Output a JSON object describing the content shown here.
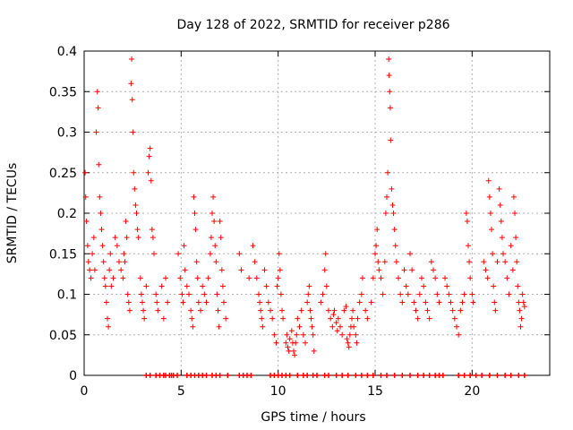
{
  "chart_data": {
    "type": "scatter",
    "title": "Day 128 of 2022, SRMTID for receiver p286",
    "xlabel": "GPS time / hours",
    "ylabel": "SRMTID / TECUs",
    "xlim": [
      0,
      24
    ],
    "ylim": [
      0,
      0.4
    ],
    "x_ticks": [
      0,
      5,
      10,
      15,
      20
    ],
    "x_tick_labels": [
      "0",
      "5",
      "10",
      "15",
      "20"
    ],
    "y_ticks": [
      0,
      0.05,
      0.1,
      0.15,
      0.2,
      0.25,
      0.3,
      0.35,
      0.4
    ],
    "y_tick_labels": [
      "0",
      "0.05",
      "0.1",
      "0.15",
      "0.2",
      "0.25",
      "0.3",
      "0.35",
      "0.4"
    ],
    "grid": true,
    "marker": "+",
    "series": [
      {
        "name": "SRMTID",
        "color": "#ff0000",
        "points": [
          [
            0.05,
            0.25
          ],
          [
            0.08,
            0.22
          ],
          [
            0.12,
            0.19
          ],
          [
            0.18,
            0.16
          ],
          [
            0.22,
            0.14
          ],
          [
            0.28,
            0.13
          ],
          [
            0.35,
            0.12
          ],
          [
            0.42,
            0.15
          ],
          [
            0.5,
            0.17
          ],
          [
            0.55,
            0.13
          ],
          [
            0.62,
            0.3
          ],
          [
            0.68,
            0.35
          ],
          [
            0.72,
            0.33
          ],
          [
            0.75,
            0.26
          ],
          [
            0.8,
            0.22
          ],
          [
            0.85,
            0.2
          ],
          [
            0.9,
            0.18
          ],
          [
            0.95,
            0.16
          ],
          [
            1.0,
            0.14
          ],
          [
            1.05,
            0.12
          ],
          [
            1.1,
            0.11
          ],
          [
            1.15,
            0.09
          ],
          [
            1.2,
            0.07
          ],
          [
            1.25,
            0.06
          ],
          [
            1.3,
            0.13
          ],
          [
            1.35,
            0.15
          ],
          [
            1.4,
            0.11
          ],
          [
            1.5,
            0.12
          ],
          [
            1.6,
            0.17
          ],
          [
            1.7,
            0.16
          ],
          [
            1.8,
            0.14
          ],
          [
            1.9,
            0.13
          ],
          [
            2.0,
            0.12
          ],
          [
            2.05,
            0.15
          ],
          [
            2.1,
            0.14
          ],
          [
            2.15,
            0.19
          ],
          [
            2.2,
            0.17
          ],
          [
            2.25,
            0.1
          ],
          [
            2.3,
            0.09
          ],
          [
            2.35,
            0.08
          ],
          [
            2.42,
            0.36
          ],
          [
            2.45,
            0.39
          ],
          [
            2.48,
            0.34
          ],
          [
            2.52,
            0.3
          ],
          [
            2.55,
            0.25
          ],
          [
            2.6,
            0.23
          ],
          [
            2.65,
            0.21
          ],
          [
            2.7,
            0.2
          ],
          [
            2.75,
            0.18
          ],
          [
            2.8,
            0.17
          ],
          [
            2.9,
            0.12
          ],
          [
            2.95,
            0.1
          ],
          [
            3.0,
            0.09
          ],
          [
            3.05,
            0.08
          ],
          [
            3.1,
            0.07
          ],
          [
            3.2,
            0.11
          ],
          [
            3.3,
            0.25
          ],
          [
            3.35,
            0.27
          ],
          [
            3.4,
            0.28
          ],
          [
            3.45,
            0.24
          ],
          [
            3.5,
            0.18
          ],
          [
            3.55,
            0.17
          ],
          [
            3.6,
            0.15
          ],
          [
            3.7,
            0.1
          ],
          [
            3.75,
            0.09
          ],
          [
            3.8,
            0.08
          ],
          [
            4.0,
            0.11
          ],
          [
            4.1,
            0.07
          ],
          [
            4.2,
            0.12
          ],
          [
            4.3,
            0.09
          ],
          [
            4.85,
            0.15
          ],
          [
            4.95,
            0.12
          ],
          [
            5.05,
            0.1
          ],
          [
            5.1,
            0.09
          ],
          [
            5.15,
            0.16
          ],
          [
            5.2,
            0.13
          ],
          [
            5.3,
            0.11
          ],
          [
            5.4,
            0.1
          ],
          [
            5.5,
            0.08
          ],
          [
            5.55,
            0.07
          ],
          [
            5.6,
            0.06
          ],
          [
            5.65,
            0.22
          ],
          [
            5.7,
            0.2
          ],
          [
            5.75,
            0.18
          ],
          [
            5.8,
            0.14
          ],
          [
            5.85,
            0.12
          ],
          [
            5.9,
            0.09
          ],
          [
            6.0,
            0.08
          ],
          [
            6.1,
            0.11
          ],
          [
            6.2,
            0.1
          ],
          [
            6.3,
            0.09
          ],
          [
            6.4,
            0.12
          ],
          [
            6.5,
            0.15
          ],
          [
            6.55,
            0.17
          ],
          [
            6.6,
            0.2
          ],
          [
            6.65,
            0.22
          ],
          [
            6.7,
            0.19
          ],
          [
            6.75,
            0.16
          ],
          [
            6.8,
            0.14
          ],
          [
            6.85,
            0.1
          ],
          [
            6.9,
            0.08
          ],
          [
            6.95,
            0.06
          ],
          [
            7.0,
            0.19
          ],
          [
            7.05,
            0.17
          ],
          [
            7.1,
            0.13
          ],
          [
            7.15,
            0.11
          ],
          [
            7.2,
            0.09
          ],
          [
            7.3,
            0.07
          ],
          [
            8.0,
            0.15
          ],
          [
            8.1,
            0.13
          ],
          [
            8.5,
            0.12
          ],
          [
            8.7,
            0.16
          ],
          [
            8.8,
            0.14
          ],
          [
            8.9,
            0.12
          ],
          [
            9.0,
            0.1
          ],
          [
            9.05,
            0.09
          ],
          [
            9.1,
            0.08
          ],
          [
            9.15,
            0.07
          ],
          [
            9.2,
            0.06
          ],
          [
            9.3,
            0.13
          ],
          [
            9.4,
            0.11
          ],
          [
            9.5,
            0.09
          ],
          [
            9.6,
            0.08
          ],
          [
            9.7,
            0.07
          ],
          [
            9.8,
            0.05
          ],
          [
            9.9,
            0.04
          ],
          [
            9.95,
            0.11
          ],
          [
            10.0,
            0.12
          ],
          [
            10.05,
            0.15
          ],
          [
            10.1,
            0.13
          ],
          [
            10.15,
            0.1
          ],
          [
            10.2,
            0.08
          ],
          [
            10.25,
            0.07
          ],
          [
            10.4,
            0.04
          ],
          [
            10.45,
            0.05
          ],
          [
            10.5,
            0.035
          ],
          [
            10.55,
            0.03
          ],
          [
            10.6,
            0.045
          ],
          [
            10.7,
            0.055
          ],
          [
            10.75,
            0.04
          ],
          [
            10.8,
            0.03
          ],
          [
            10.85,
            0.025
          ],
          [
            10.9,
            0.04
          ],
          [
            10.95,
            0.05
          ],
          [
            11.0,
            0.07
          ],
          [
            11.1,
            0.06
          ],
          [
            11.2,
            0.08
          ],
          [
            11.3,
            0.05
          ],
          [
            11.4,
            0.04
          ],
          [
            11.5,
            0.09
          ],
          [
            11.55,
            0.1
          ],
          [
            11.6,
            0.11
          ],
          [
            11.65,
            0.08
          ],
          [
            11.7,
            0.07
          ],
          [
            11.75,
            0.06
          ],
          [
            11.8,
            0.05
          ],
          [
            11.85,
            0.03
          ],
          [
            12.2,
            0.09
          ],
          [
            12.3,
            0.1
          ],
          [
            12.4,
            0.13
          ],
          [
            12.45,
            0.15
          ],
          [
            12.5,
            0.11
          ],
          [
            12.6,
            0.08
          ],
          [
            12.7,
            0.07
          ],
          [
            12.8,
            0.06
          ],
          [
            12.85,
            0.075
          ],
          [
            12.9,
            0.08
          ],
          [
            13.0,
            0.065
          ],
          [
            13.05,
            0.055
          ],
          [
            13.1,
            0.07
          ],
          [
            13.2,
            0.06
          ],
          [
            13.3,
            0.05
          ],
          [
            13.4,
            0.08
          ],
          [
            13.5,
            0.085
          ],
          [
            13.55,
            0.045
          ],
          [
            13.6,
            0.04
          ],
          [
            13.65,
            0.035
          ],
          [
            13.7,
            0.05
          ],
          [
            13.75,
            0.06
          ],
          [
            13.8,
            0.07
          ],
          [
            13.85,
            0.08
          ],
          [
            13.9,
            0.06
          ],
          [
            14.0,
            0.05
          ],
          [
            14.05,
            0.04
          ],
          [
            14.1,
            0.07
          ],
          [
            14.2,
            0.09
          ],
          [
            14.3,
            0.1
          ],
          [
            14.35,
            0.12
          ],
          [
            14.5,
            0.08
          ],
          [
            14.6,
            0.07
          ],
          [
            14.8,
            0.09
          ],
          [
            14.9,
            0.12
          ],
          [
            15.0,
            0.15
          ],
          [
            15.05,
            0.16
          ],
          [
            15.1,
            0.18
          ],
          [
            15.15,
            0.14
          ],
          [
            15.2,
            0.13
          ],
          [
            15.3,
            0.12
          ],
          [
            15.4,
            0.1
          ],
          [
            15.5,
            0.14
          ],
          [
            15.55,
            0.2
          ],
          [
            15.6,
            0.22
          ],
          [
            15.65,
            0.25
          ],
          [
            15.7,
            0.39
          ],
          [
            15.72,
            0.37
          ],
          [
            15.75,
            0.35
          ],
          [
            15.78,
            0.33
          ],
          [
            15.8,
            0.29
          ],
          [
            15.85,
            0.23
          ],
          [
            15.9,
            0.21
          ],
          [
            15.95,
            0.2
          ],
          [
            16.0,
            0.18
          ],
          [
            16.05,
            0.16
          ],
          [
            16.1,
            0.14
          ],
          [
            16.2,
            0.12
          ],
          [
            16.3,
            0.1
          ],
          [
            16.4,
            0.09
          ],
          [
            16.5,
            0.13
          ],
          [
            16.6,
            0.11
          ],
          [
            16.7,
            0.1
          ],
          [
            16.8,
            0.15
          ],
          [
            16.9,
            0.13
          ],
          [
            17.0,
            0.09
          ],
          [
            17.1,
            0.08
          ],
          [
            17.2,
            0.07
          ],
          [
            17.3,
            0.1
          ],
          [
            17.4,
            0.12
          ],
          [
            17.5,
            0.11
          ],
          [
            17.6,
            0.09
          ],
          [
            17.7,
            0.08
          ],
          [
            17.8,
            0.07
          ],
          [
            17.9,
            0.14
          ],
          [
            18.0,
            0.13
          ],
          [
            18.1,
            0.12
          ],
          [
            18.2,
            0.1
          ],
          [
            18.3,
            0.09
          ],
          [
            18.6,
            0.12
          ],
          [
            18.7,
            0.11
          ],
          [
            18.8,
            0.1
          ],
          [
            18.9,
            0.09
          ],
          [
            19.0,
            0.08
          ],
          [
            19.1,
            0.07
          ],
          [
            19.2,
            0.06
          ],
          [
            19.3,
            0.05
          ],
          [
            19.4,
            0.08
          ],
          [
            19.5,
            0.09
          ],
          [
            19.6,
            0.1
          ],
          [
            19.7,
            0.2
          ],
          [
            19.75,
            0.19
          ],
          [
            19.8,
            0.16
          ],
          [
            19.85,
            0.14
          ],
          [
            19.9,
            0.12
          ],
          [
            20.0,
            0.1
          ],
          [
            20.05,
            0.09
          ],
          [
            20.6,
            0.14
          ],
          [
            20.7,
            0.13
          ],
          [
            20.8,
            0.12
          ],
          [
            20.85,
            0.24
          ],
          [
            20.9,
            0.22
          ],
          [
            20.95,
            0.2
          ],
          [
            21.0,
            0.18
          ],
          [
            21.05,
            0.15
          ],
          [
            21.1,
            0.11
          ],
          [
            21.15,
            0.09
          ],
          [
            21.2,
            0.08
          ],
          [
            21.3,
            0.14
          ],
          [
            21.4,
            0.23
          ],
          [
            21.45,
            0.21
          ],
          [
            21.5,
            0.19
          ],
          [
            21.55,
            0.17
          ],
          [
            21.6,
            0.15
          ],
          [
            21.7,
            0.14
          ],
          [
            21.8,
            0.12
          ],
          [
            21.9,
            0.1
          ],
          [
            22.0,
            0.16
          ],
          [
            22.1,
            0.13
          ],
          [
            22.15,
            0.22
          ],
          [
            22.2,
            0.2
          ],
          [
            22.25,
            0.17
          ],
          [
            22.3,
            0.14
          ],
          [
            22.35,
            0.11
          ],
          [
            22.4,
            0.09
          ],
          [
            22.45,
            0.08
          ],
          [
            22.5,
            0.06
          ],
          [
            22.55,
            0.07
          ],
          [
            22.6,
            0.1
          ],
          [
            22.65,
            0.09
          ],
          [
            22.7,
            0.085
          ]
        ],
        "zero_markers_x": [
          3.2,
          3.4,
          3.7,
          3.9,
          4.1,
          4.2,
          4.4,
          4.5,
          4.6,
          4.8,
          5.3,
          5.5,
          5.7,
          5.9,
          6.1,
          6.3,
          6.6,
          6.8,
          7.0,
          7.4,
          8.0,
          8.2,
          8.4,
          8.6,
          9.6,
          9.8,
          10.0,
          10.2,
          10.4,
          10.6,
          11.0,
          11.3,
          11.5,
          11.8,
          12.0,
          12.4,
          12.6,
          13.0,
          13.3,
          13.6,
          14.0,
          14.3,
          14.6,
          14.9,
          15.3,
          15.6,
          16.0,
          16.4,
          16.8,
          17.2,
          17.5,
          17.8,
          18.1,
          18.3,
          18.5,
          19.3,
          19.6,
          19.9,
          20.2,
          20.5,
          20.9,
          21.3,
          21.7,
          22.0,
          22.4,
          22.7
        ]
      }
    ]
  }
}
